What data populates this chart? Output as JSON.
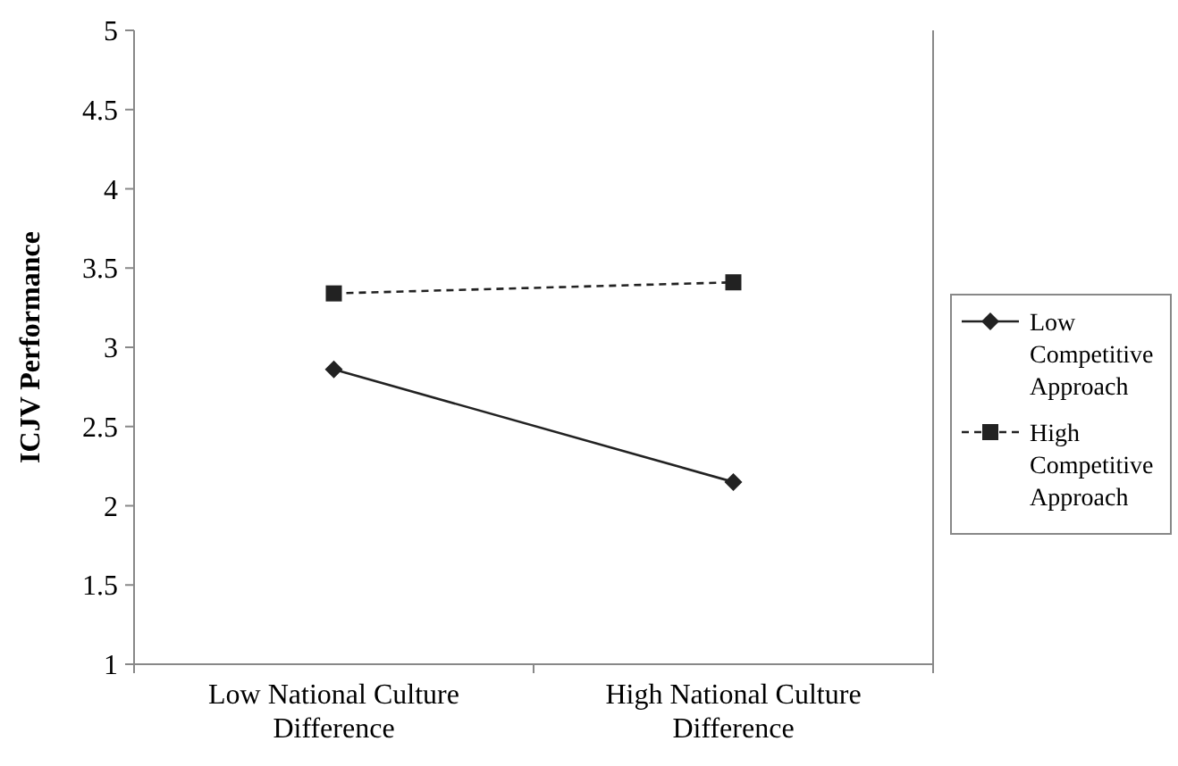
{
  "chart_data": {
    "type": "line",
    "ylabel": "ICJV Performance",
    "categories": [
      "Low National Culture Difference",
      "High National Culture Difference"
    ],
    "ylim": [
      1,
      5
    ],
    "yticks": [
      1,
      1.5,
      2,
      2.5,
      3,
      3.5,
      4,
      4.5,
      5
    ],
    "legend": "right",
    "grid": false,
    "series": [
      {
        "name": "Low Competitive Approach",
        "color": "#222222",
        "values": [
          2.86,
          2.15
        ],
        "marker": "diamond",
        "line_style": "solid"
      },
      {
        "name": "High Competitive Approach",
        "color": "#222222",
        "values": [
          3.34,
          3.41
        ],
        "marker": "square",
        "line_style": "dashed"
      }
    ]
  }
}
